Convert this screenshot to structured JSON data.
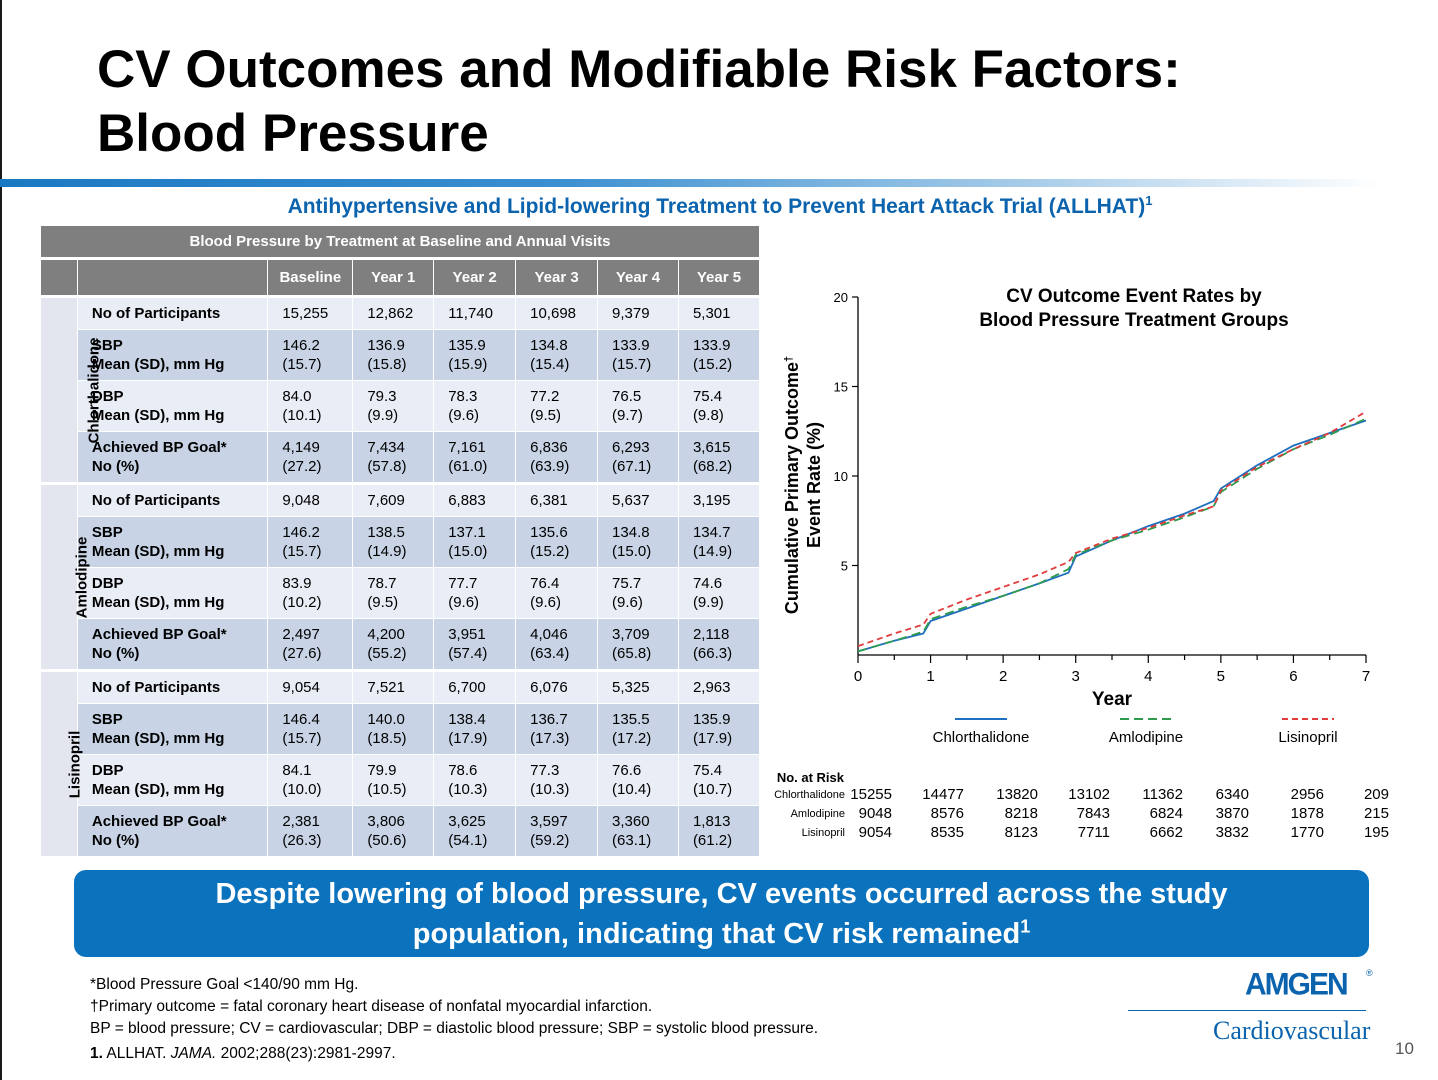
{
  "title_line1": "CV Outcomes and Modifiable Risk Factors:",
  "title_line2": "Blood Pressure",
  "subtitle": "Antihypertensive and Lipid-lowering Treatment to Prevent Heart Attack Trial (ALLHAT)",
  "subtitle_ref": "1",
  "table": {
    "caption": "Blood Pressure by Treatment at Baseline and Annual Visits",
    "columns": [
      "Baseline",
      "Year 1",
      "Year 2",
      "Year 3",
      "Year 4",
      "Year 5"
    ],
    "groups": [
      {
        "name": "Chlorthalidone",
        "rows": [
          {
            "label1": "No of Participants",
            "label2": "",
            "values": [
              [
                "15,255",
                ""
              ],
              [
                "12,862",
                ""
              ],
              [
                "11,740",
                ""
              ],
              [
                "10,698",
                ""
              ],
              [
                "9,379",
                ""
              ],
              [
                "5,301",
                ""
              ]
            ]
          },
          {
            "label1": "SBP",
            "label2": "Mean (SD), mm Hg",
            "values": [
              [
                "146.2",
                "(15.7)"
              ],
              [
                "136.9",
                "(15.8)"
              ],
              [
                "135.9",
                "(15.9)"
              ],
              [
                "134.8",
                "(15.4)"
              ],
              [
                "133.9",
                "(15.7)"
              ],
              [
                "133.9",
                "(15.2)"
              ]
            ]
          },
          {
            "label1": "DBP",
            "label2": "Mean (SD), mm Hg",
            "values": [
              [
                "84.0",
                "(10.1)"
              ],
              [
                "79.3",
                "(9.9)"
              ],
              [
                "78.3",
                "(9.6)"
              ],
              [
                "77.2",
                "(9.5)"
              ],
              [
                "76.5",
                "(9.7)"
              ],
              [
                "75.4",
                "(9.8)"
              ]
            ]
          },
          {
            "label1": "Achieved BP Goal*",
            "label2": "No (%)",
            "values": [
              [
                "4,149",
                "(27.2)"
              ],
              [
                "7,434",
                "(57.8)"
              ],
              [
                "7,161",
                "(61.0)"
              ],
              [
                "6,836",
                "(63.9)"
              ],
              [
                "6,293",
                "(67.1)"
              ],
              [
                "3,615",
                "(68.2)"
              ]
            ]
          }
        ]
      },
      {
        "name": "Amlodipine",
        "rows": [
          {
            "label1": "No of Participants",
            "label2": "",
            "values": [
              [
                "9,048",
                ""
              ],
              [
                "7,609",
                ""
              ],
              [
                "6,883",
                ""
              ],
              [
                "6,381",
                ""
              ],
              [
                "5,637",
                ""
              ],
              [
                "3,195",
                ""
              ]
            ]
          },
          {
            "label1": "SBP",
            "label2": "Mean (SD), mm Hg",
            "values": [
              [
                "146.2",
                "(15.7)"
              ],
              [
                "138.5",
                "(14.9)"
              ],
              [
                "137.1",
                "(15.0)"
              ],
              [
                "135.6",
                "(15.2)"
              ],
              [
                "134.8",
                "(15.0)"
              ],
              [
                "134.7",
                "(14.9)"
              ]
            ]
          },
          {
            "label1": "DBP",
            "label2": "Mean (SD), mm Hg",
            "values": [
              [
                "83.9",
                "(10.2)"
              ],
              [
                "78.7",
                "(9.5)"
              ],
              [
                "77.7",
                "(9.6)"
              ],
              [
                "76.4",
                "(9.6)"
              ],
              [
                "75.7",
                "(9.6)"
              ],
              [
                "74.6",
                "(9.9)"
              ]
            ]
          },
          {
            "label1": "Achieved BP Goal*",
            "label2": "No (%)",
            "values": [
              [
                "2,497",
                "(27.6)"
              ],
              [
                "4,200",
                "(55.2)"
              ],
              [
                "3,951",
                "(57.4)"
              ],
              [
                "4,046",
                "(63.4)"
              ],
              [
                "3,709",
                "(65.8)"
              ],
              [
                "2,118",
                "(66.3)"
              ]
            ]
          }
        ]
      },
      {
        "name": "Lisinopril",
        "rows": [
          {
            "label1": "No of Participants",
            "label2": "",
            "values": [
              [
                "9,054",
                ""
              ],
              [
                "7,521",
                ""
              ],
              [
                "6,700",
                ""
              ],
              [
                "6,076",
                ""
              ],
              [
                "5,325",
                ""
              ],
              [
                "2,963",
                ""
              ]
            ]
          },
          {
            "label1": "SBP",
            "label2": "Mean (SD), mm Hg",
            "values": [
              [
                "146.4",
                "(15.7)"
              ],
              [
                "140.0",
                "(18.5)"
              ],
              [
                "138.4",
                "(17.9)"
              ],
              [
                "136.7",
                "(17.3)"
              ],
              [
                "135.5",
                "(17.2)"
              ],
              [
                "135.9",
                "(17.9)"
              ]
            ]
          },
          {
            "label1": "DBP",
            "label2": "Mean (SD), mm Hg",
            "values": [
              [
                "84.1",
                "(10.0)"
              ],
              [
                "79.9",
                "(10.5)"
              ],
              [
                "78.6",
                "(10.3)"
              ],
              [
                "77.3",
                "(10.3)"
              ],
              [
                "76.6",
                "(10.4)"
              ],
              [
                "75.4",
                "(10.7)"
              ]
            ]
          },
          {
            "label1": "Achieved BP Goal*",
            "label2": "No (%)",
            "values": [
              [
                "2,381",
                "(26.3)"
              ],
              [
                "3,806",
                "(50.6)"
              ],
              [
                "3,625",
                "(54.1)"
              ],
              [
                "3,597",
                "(59.2)"
              ],
              [
                "3,360",
                "(63.1)"
              ],
              [
                "1,813",
                "(61.2)"
              ]
            ]
          }
        ]
      }
    ]
  },
  "chart_data": {
    "type": "line",
    "title": "CV Outcome Event Rates by Blood Pressure Treatment Groups",
    "title_line1": "CV Outcome Event Rates by",
    "title_line2": "Blood Pressure Treatment Groups",
    "xlabel": "Year",
    "ylabel_line1": "Cumulative Primary Outcome",
    "ylabel_dagger": "†",
    "ylabel_line2": "Event Rate (%)",
    "xlim": [
      0,
      7
    ],
    "ylim": [
      0,
      20
    ],
    "x_ticks": [
      0,
      1,
      2,
      3,
      4,
      5,
      6,
      7
    ],
    "y_ticks": [
      5,
      10,
      15,
      20
    ],
    "legend_position": "below",
    "series": [
      {
        "name": "Chlorthalidone",
        "color": "#1f6fbf",
        "dash": "solid",
        "x": [
          0,
          0.5,
          0.9,
          1.0,
          1.5,
          2.0,
          2.5,
          2.9,
          3.0,
          3.5,
          4.0,
          4.5,
          4.9,
          5.0,
          5.5,
          6.0,
          6.5,
          7.0
        ],
        "y": [
          0.2,
          0.8,
          1.2,
          1.9,
          2.6,
          3.3,
          4.0,
          4.6,
          5.5,
          6.4,
          7.2,
          7.9,
          8.6,
          9.3,
          10.6,
          11.7,
          12.4,
          13.1
        ]
      },
      {
        "name": "Amlodipine",
        "color": "#2e9b4e",
        "dash": "green-dash",
        "x": [
          0,
          0.5,
          0.9,
          1.0,
          1.5,
          2.0,
          2.5,
          2.9,
          3.0,
          3.5,
          4.0,
          4.5,
          4.9,
          5.0,
          5.5,
          6.0,
          6.5,
          7.0
        ],
        "y": [
          0.2,
          0.8,
          1.3,
          2.0,
          2.7,
          3.3,
          4.0,
          4.8,
          5.6,
          6.4,
          7.0,
          7.7,
          8.3,
          9.1,
          10.4,
          11.5,
          12.3,
          13.2
        ]
      },
      {
        "name": "Lisinopril",
        "color": "#e03c3c",
        "dash": "red-dash",
        "x": [
          0,
          0.5,
          0.9,
          1.0,
          1.5,
          2.0,
          2.5,
          2.9,
          3.0,
          3.5,
          4.0,
          4.5,
          4.9,
          5.0,
          5.5,
          6.0,
          6.5,
          7.0
        ],
        "y": [
          0.5,
          1.2,
          1.7,
          2.3,
          3.1,
          3.8,
          4.5,
          5.2,
          5.7,
          6.5,
          7.1,
          7.8,
          8.3,
          9.2,
          10.5,
          11.5,
          12.4,
          13.6
        ]
      }
    ]
  },
  "at_risk": {
    "header": "No. at Risk",
    "rows": [
      {
        "label": "Chlorthalidone",
        "values": [
          "15255",
          "14477",
          "13820",
          "13102",
          "11362",
          "6340",
          "2956",
          "209"
        ]
      },
      {
        "label": "Amlodipine",
        "values": [
          "9048",
          "8576",
          "8218",
          "7843",
          "6824",
          "3870",
          "1878",
          "215"
        ]
      },
      {
        "label": "Lisinopril",
        "values": [
          "9054",
          "8535",
          "8123",
          "7711",
          "6662",
          "3832",
          "1770",
          "195"
        ]
      }
    ]
  },
  "callout_line1": "Despite lowering of blood pressure, CV events occurred across the study",
  "callout_line2": "population, indicating that CV risk remained",
  "callout_ref": "1",
  "footnotes": [
    "*Blood Pressure Goal <140/90 mm Hg.",
    "†Primary outcome = fatal coronary heart disease of nonfatal myocardial infarction.",
    "BP = blood pressure; CV = cardiovascular; DBP = diastolic blood pressure; SBP = systolic blood pressure."
  ],
  "reference": {
    "num": "1.",
    "text_a": " ALLHAT. ",
    "journal": "JAMA.",
    "text_b": " 2002;288(23):2981-2997."
  },
  "logo": {
    "brand": "AMGEN",
    "reg": "®",
    "division": "Cardiovascular"
  },
  "page_number": "10"
}
